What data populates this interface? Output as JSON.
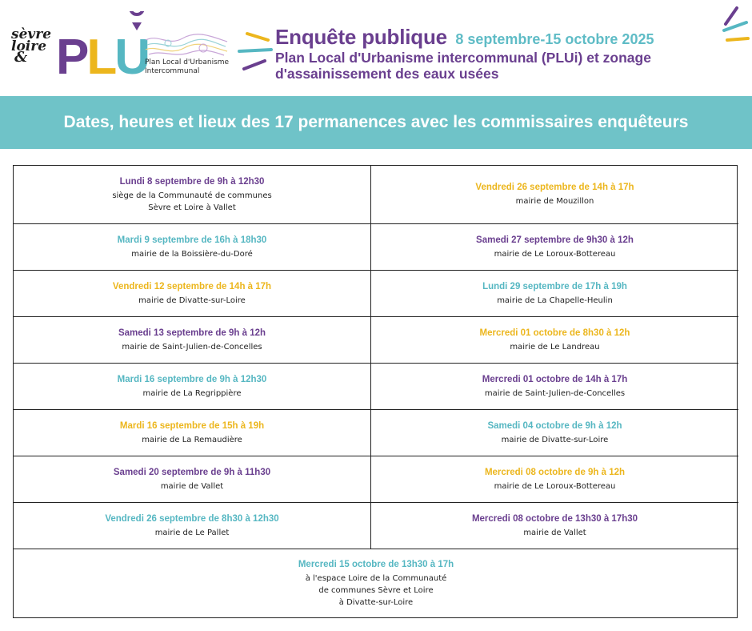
{
  "header": {
    "sevre_logo": [
      "sèvre",
      "loire",
      "&"
    ],
    "plui_logo": "PLUi",
    "plan_lines": [
      "Plan Local d'Urbanisme",
      "Intercommunal"
    ],
    "title": "Enquête publique",
    "dates": "8 septembre-15 octobre 2025",
    "subtitle_lines": [
      "Plan Local d'Urbanisme intercommunal (PLUi) et zonage",
      "d'assainissement des eaux usées"
    ]
  },
  "colors": {
    "purple": "#6a3f8f",
    "teal": "#56b7c2",
    "yellow": "#ecb61d",
    "banner": "#6fc3c8"
  },
  "banner": {
    "text": "Dates, heures et lieux des 17 permanences avec les commissaires enquêteurs"
  },
  "left_column": [
    {
      "date": "Lundi 8 septembre de 9h à 12h30",
      "color": "purple",
      "lines": [
        "siège de la Communauté de communes",
        "Sèvre et Loire à Vallet"
      ]
    },
    {
      "date": "Mardi 9 septembre de 16h à 18h30",
      "color": "teal",
      "lines": [
        "mairie de la Boissière-du-Doré"
      ]
    },
    {
      "date": "Vendredi 12 septembre de 14h à 17h",
      "color": "yellow",
      "lines": [
        "mairie de Divatte-sur-Loire"
      ]
    },
    {
      "date": "Samedi 13 septembre de 9h à 12h",
      "color": "purple",
      "lines": [
        "mairie de Saint-Julien-de-Concelles"
      ]
    },
    {
      "date": "Mardi 16 septembre de 9h à 12h30",
      "color": "teal",
      "lines": [
        "mairie de La Regrippière"
      ]
    },
    {
      "date": "Mardi 16 septembre de 15h à 19h",
      "color": "yellow",
      "lines": [
        "mairie de La Remaudière"
      ]
    },
    {
      "date": "Samedi 20 septembre de 9h à 11h30",
      "color": "purple",
      "lines": [
        "mairie de Vallet"
      ]
    },
    {
      "date": "Vendredi 26 septembre de 8h30 à 12h30",
      "color": "teal",
      "lines": [
        "mairie de Le Pallet"
      ]
    }
  ],
  "right_column": [
    {
      "date": "Vendredi 26 septembre de 14h à 17h",
      "color": "yellow",
      "lines": [
        "mairie de Mouzillon"
      ]
    },
    {
      "date": "Samedi 27 septembre de 9h30 à 12h",
      "color": "purple",
      "lines": [
        "mairie de Le Loroux-Bottereau"
      ]
    },
    {
      "date": "Lundi 29 septembre de 17h à 19h",
      "color": "teal",
      "lines": [
        "mairie de La Chapelle-Heulin"
      ]
    },
    {
      "date": "Mercredi 01 octobre de 8h30 à 12h",
      "color": "yellow",
      "lines": [
        "mairie de Le Landreau"
      ]
    },
    {
      "date": "Mercredi 01 octobre de 14h à 17h",
      "color": "purple",
      "lines": [
        "mairie de Saint-Julien-de-Concelles"
      ]
    },
    {
      "date": "Samedi 04 octobre de 9h à 12h",
      "color": "teal",
      "lines": [
        "mairie de Divatte-sur-Loire"
      ]
    },
    {
      "date": "Mercredi 08 octobre de 9h à 12h",
      "color": "yellow",
      "lines": [
        "mairie de Le Loroux-Bottereau"
      ]
    },
    {
      "date": "Mercredi 08 octobre de 13h30 à 17h30",
      "color": "purple",
      "lines": [
        "mairie de Vallet"
      ]
    }
  ],
  "final": {
    "date": "Mercredi 15 octobre de 13h30 à 17h",
    "color": "teal",
    "lines": [
      "à l'espace Loire de la Communauté",
      "de communes Sèvre et Loire",
      "à Divatte-sur-Loire"
    ]
  }
}
